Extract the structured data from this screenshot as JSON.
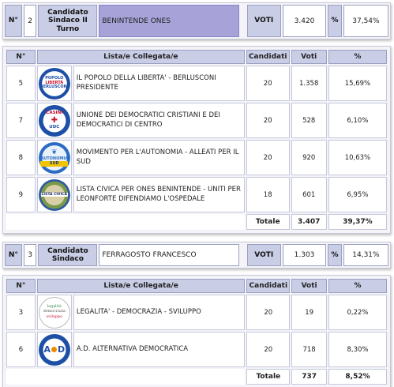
{
  "cols": {
    "num": "N°",
    "lista": "Lista/e Collegata/e",
    "candidati": "Candidati",
    "voti": "Voti",
    "pct": "%"
  },
  "blocks": [
    {
      "no_label": "N°",
      "number": "2",
      "role_label": "Candidato Sindaco II Turno",
      "name": "BENINTENDE ONES",
      "voti_label": "VOTI",
      "voti": "3.420",
      "pct_label": "%",
      "pct": "37,54%",
      "lists": [
        {
          "num": "5",
          "logo": "pdl-logo-icon",
          "logo_lines": [
            "POPOLO",
            "LIBERTÀ",
            "BERLUSCONI"
          ],
          "name": "IL POPOLO DELLA LIBERTA' - BERLUSCONI PRESIDENTE",
          "candidati": "20",
          "voti": "1.358",
          "pct": "15,69%"
        },
        {
          "num": "7",
          "logo": "udc-logo-icon",
          "logo_lines": [
            "CASINI",
            "UDC"
          ],
          "name": "UNIONE DEI DEMOCRATICI CRISTIANI E DEI DEMOCRATICI DI CENTRO",
          "candidati": "20",
          "voti": "528",
          "pct": "6,10%"
        },
        {
          "num": "8",
          "logo": "mpa-logo-icon",
          "logo_lines": [
            "AUTONOMIA",
            "SUD"
          ],
          "name": "MOVIMENTO PER L'AUTONOMIA - ALLEATI PER IL SUD",
          "candidati": "20",
          "voti": "920",
          "pct": "10,63%"
        },
        {
          "num": "9",
          "logo": "lista-civica-logo-icon",
          "logo_lines": [
            "LISTA CIVICA"
          ],
          "name": "LISTA CIVICA PER ONES BENINTENDE - UNITI PER LEONFORTE DIFENDIAMO L'OSPEDALE",
          "candidati": "18",
          "voti": "601",
          "pct": "6,95%"
        }
      ],
      "totale_label": "Totale",
      "totale_voti": "3.407",
      "totale_pct": "39,37%"
    },
    {
      "no_label": "N°",
      "number": "3",
      "role_label": "Candidato Sindaco",
      "name": "FERRAGOSTO FRANCESCO",
      "voti_label": "VOTI",
      "voti": "1.303",
      "pct_label": "%",
      "pct": "14,31%",
      "lists": [
        {
          "num": "3",
          "logo": "legalita-logo-icon",
          "logo_lines": [
            "legalità",
            "democrazia",
            "sviluppo"
          ],
          "name": "LEGALITA' - DEMOCRAZIA - SVILUPPO",
          "candidati": "20",
          "voti": "19",
          "pct": "0,22%"
        },
        {
          "num": "6",
          "logo": "alternativa-democratica-logo-icon",
          "logo_lines": [
            "A",
            "D"
          ],
          "name": "A.D. ALTERNATIVA DEMOCRATICA",
          "candidati": "20",
          "voti": "718",
          "pct": "8,30%"
        }
      ],
      "totale_label": "Totale",
      "totale_voti": "737",
      "totale_pct": "8,52%"
    }
  ]
}
